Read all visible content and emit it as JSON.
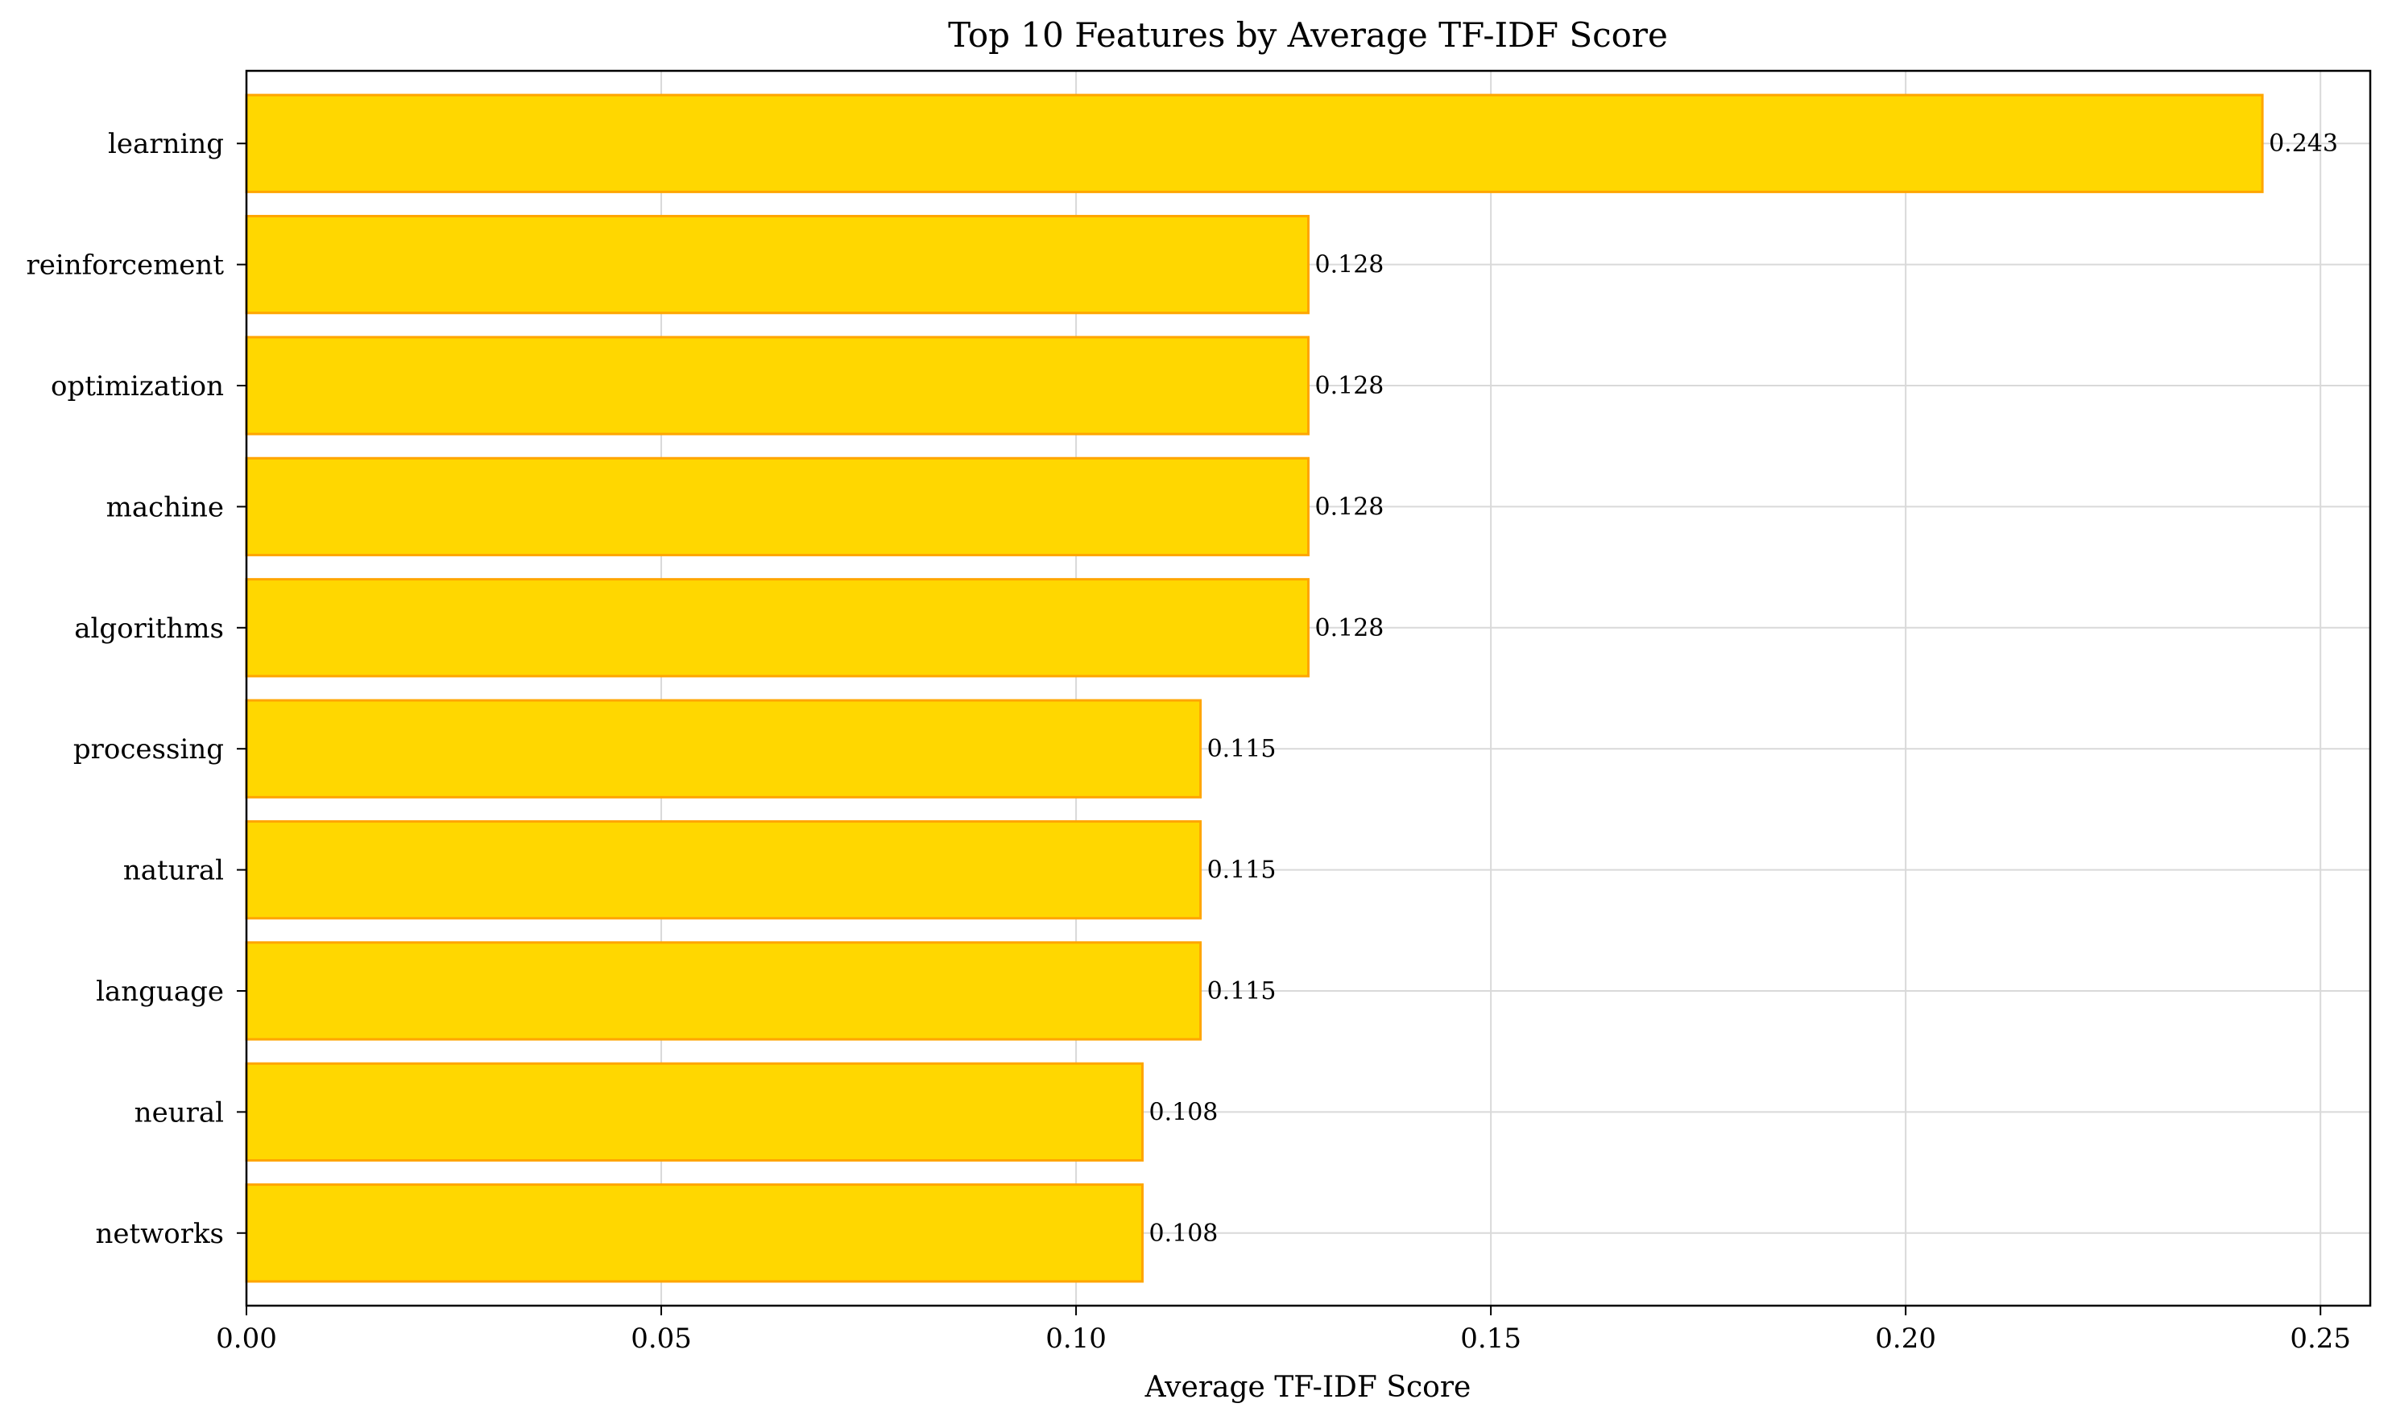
{
  "chart_data": {
    "type": "bar",
    "orientation": "horizontal",
    "title": "Top 10 Features by Average TF-IDF Score",
    "xlabel": "Average TF-IDF Score",
    "ylabel": "",
    "xlim": [
      0,
      0.256
    ],
    "xticks": [
      0.0,
      0.05,
      0.1,
      0.15,
      0.2,
      0.25
    ],
    "xtick_labels": [
      "0.00",
      "0.05",
      "0.10",
      "0.15",
      "0.20",
      "0.25"
    ],
    "categories": [
      "learning",
      "reinforcement",
      "optimization",
      "machine",
      "algorithms",
      "processing",
      "natural",
      "language",
      "neural",
      "networks"
    ],
    "values": [
      0.243,
      0.128,
      0.128,
      0.128,
      0.128,
      0.115,
      0.115,
      0.115,
      0.108,
      0.108
    ],
    "value_labels": [
      "0.243",
      "0.128",
      "0.128",
      "0.128",
      "0.128",
      "0.115",
      "0.115",
      "0.115",
      "0.108",
      "0.108"
    ],
    "grid": true,
    "legend": "none",
    "colors": {
      "bar_fill": "#FFD700",
      "bar_edge": "#FFA500",
      "grid": "#d9d9d9",
      "axis": "#000000"
    }
  }
}
